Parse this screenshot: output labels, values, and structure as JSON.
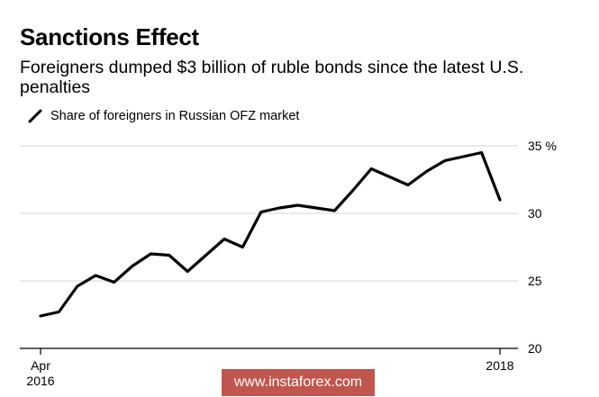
{
  "header": {
    "title": "Sanctions Effect",
    "subtitle": "Foreigners dumped $3 billion of ruble bonds since the latest U.S. penalties"
  },
  "chart_data": {
    "type": "line",
    "title": "Sanctions Effect",
    "subtitle": "Foreigners dumped $3 billion of ruble bonds since the latest U.S. penalties",
    "xlabel": "",
    "ylabel": "",
    "x": [
      "2016-04",
      "2016-05",
      "2016-06",
      "2016-07",
      "2016-08",
      "2016-09",
      "2016-10",
      "2016-11",
      "2016-12",
      "2017-01",
      "2017-02",
      "2017-03",
      "2017-04",
      "2017-05",
      "2017-06",
      "2017-07",
      "2017-08",
      "2017-09",
      "2017-10",
      "2017-11",
      "2017-12",
      "2018-01",
      "2018-02",
      "2018-03",
      "2018-04",
      "2018-05"
    ],
    "x_tick_labels": [
      {
        "x": "2016-04",
        "lines": [
          "Apr",
          "2016"
        ]
      },
      {
        "x": "2018-05",
        "lines": [
          "2018"
        ]
      }
    ],
    "series": [
      {
        "name": "Share of foreigners in Russian OFZ market",
        "color": "#000000",
        "values": [
          22.4,
          22.7,
          24.6,
          25.4,
          24.9,
          26.1,
          27.0,
          26.9,
          25.7,
          26.9,
          28.1,
          27.5,
          30.1,
          30.4,
          30.6,
          30.4,
          30.2,
          31.7,
          33.3,
          32.7,
          32.1,
          33.1,
          33.9,
          34.2,
          34.5,
          31.0
        ]
      }
    ],
    "ylim": [
      20,
      35
    ],
    "yticks": [
      {
        "value": 35,
        "label": "35 %"
      },
      {
        "value": 30,
        "label": "30"
      },
      {
        "value": 25,
        "label": "25"
      },
      {
        "value": 20,
        "label": "20"
      }
    ],
    "grid": "horizontal",
    "legend": "top-left"
  },
  "watermark": {
    "text": "www.instaforex.com",
    "color": "#c0564e"
  }
}
